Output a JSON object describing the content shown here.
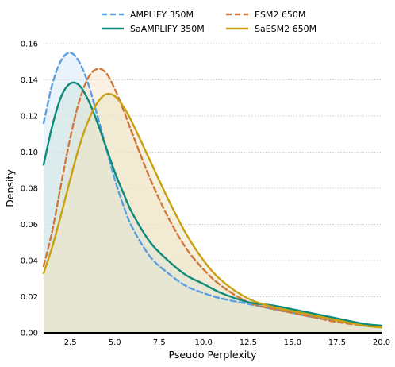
{
  "chart_data": {
    "type": "area",
    "title": "",
    "xlabel": "Pseudo Perplexity",
    "ylabel": "Density",
    "xlim": [
      1.0,
      20.0
    ],
    "ylim": [
      0.0,
      0.16
    ],
    "xticks": [
      "2.5",
      "5.0",
      "7.5",
      "10.0",
      "12.5",
      "15.0",
      "17.5",
      "20.0"
    ],
    "yticks": [
      "0.00",
      "0.02",
      "0.04",
      "0.06",
      "0.08",
      "0.10",
      "0.12",
      "0.14",
      "0.16"
    ],
    "grid": "horizontal-dotted",
    "legend_position": "top",
    "series": [
      {
        "name": "AMPLIFY 350M",
        "color": "#5b9fe0",
        "fill": "#d9eaf6",
        "dashed": true,
        "x": [
          1.0,
          1.5,
          2.0,
          2.5,
          3.0,
          3.5,
          4.0,
          4.5,
          5.0,
          5.5,
          6.0,
          7.0,
          8.0,
          9.0,
          10.0,
          11.0,
          12.5,
          14.0,
          15.0,
          16.0,
          17.5,
          19.0,
          20.0
        ],
        "values": [
          0.116,
          0.138,
          0.151,
          0.155,
          0.15,
          0.138,
          0.121,
          0.103,
          0.085,
          0.07,
          0.058,
          0.042,
          0.033,
          0.026,
          0.022,
          0.019,
          0.016,
          0.013,
          0.011,
          0.009,
          0.007,
          0.005,
          0.003
        ]
      },
      {
        "name": "ESM2 650M",
        "color": "#d2773a",
        "fill": "#f6e4ce",
        "dashed": true,
        "x": [
          1.0,
          1.5,
          2.0,
          2.5,
          3.0,
          3.5,
          4.0,
          4.5,
          5.0,
          5.5,
          6.0,
          7.0,
          8.0,
          9.0,
          10.0,
          11.0,
          12.5,
          14.0,
          15.0,
          16.0,
          17.5,
          19.0,
          20.0
        ],
        "values": [
          0.037,
          0.057,
          0.083,
          0.108,
          0.128,
          0.141,
          0.146,
          0.144,
          0.135,
          0.123,
          0.11,
          0.085,
          0.064,
          0.047,
          0.035,
          0.026,
          0.017,
          0.013,
          0.011,
          0.009,
          0.006,
          0.004,
          0.003
        ]
      },
      {
        "name": "SaAMPLIFY 350M",
        "color": "#0e8a78",
        "fill": "#cfe3e0",
        "dashed": false,
        "x": [
          1.0,
          1.5,
          2.0,
          2.5,
          3.0,
          3.5,
          4.0,
          4.5,
          5.0,
          5.5,
          6.0,
          7.0,
          8.0,
          9.0,
          10.0,
          11.0,
          12.5,
          14.0,
          15.0,
          16.0,
          17.5,
          19.0,
          20.0
        ],
        "values": [
          0.093,
          0.115,
          0.131,
          0.138,
          0.137,
          0.129,
          0.117,
          0.103,
          0.089,
          0.077,
          0.066,
          0.05,
          0.04,
          0.032,
          0.027,
          0.022,
          0.017,
          0.015,
          0.013,
          0.011,
          0.008,
          0.005,
          0.004
        ]
      },
      {
        "name": "SaESM2 650M",
        "color": "#c9a010",
        "fill": "#ece6c6",
        "dashed": false,
        "x": [
          1.0,
          1.5,
          2.0,
          2.5,
          3.0,
          3.5,
          4.0,
          4.5,
          5.0,
          5.5,
          6.0,
          7.0,
          8.0,
          9.0,
          10.0,
          11.0,
          12.5,
          14.0,
          15.0,
          16.0,
          17.5,
          19.0,
          20.0
        ],
        "values": [
          0.033,
          0.048,
          0.066,
          0.085,
          0.103,
          0.117,
          0.127,
          0.132,
          0.131,
          0.125,
          0.116,
          0.095,
          0.074,
          0.055,
          0.04,
          0.029,
          0.019,
          0.014,
          0.012,
          0.01,
          0.007,
          0.004,
          0.003
        ]
      }
    ],
    "legend": [
      [
        "AMPLIFY 350M",
        "ESM2 650M"
      ],
      [
        "SaAMPLIFY 350M",
        "SaESM2 650M"
      ]
    ]
  }
}
